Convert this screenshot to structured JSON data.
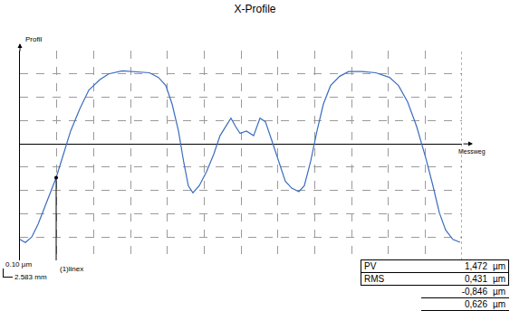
{
  "chart_data": {
    "type": "line",
    "title": "X-Profile",
    "x_label": "Messweg",
    "y_label": "Profil",
    "x": [
      0,
      0.37,
      0.8,
      1.23,
      1.72,
      2.21,
      2.46,
      2.95,
      3.44,
      4.06,
      4.67,
      5.41,
      6.02,
      6.95,
      7.87,
      8.79,
      9.4,
      9.9,
      10.33,
      10.76,
      11.12,
      11.43,
      11.74,
      12.17,
      12.66,
      13.15,
      13.58,
      14.01,
      14.32,
      14.63,
      14.94,
      15.37,
      15.86,
      16.29,
      16.66,
      17.09,
      17.58,
      18.01,
      18.44,
      18.93,
      19.3,
      19.73,
      20.16,
      20.59,
      21.08,
      21.7,
      22.31,
      23.23,
      24.15,
      25.08,
      25.69,
      26.31,
      26.92,
      27.54,
      28.03,
      28.46,
      28.89,
      29.38,
      29.87
    ],
    "values": [
      -0.82,
      -0.846,
      -0.8,
      -0.69,
      -0.53,
      -0.36,
      -0.29,
      -0.09,
      0.11,
      0.3,
      0.46,
      0.55,
      0.6,
      0.626,
      0.62,
      0.61,
      0.57,
      0.5,
      0.34,
      0.11,
      -0.16,
      -0.36,
      -0.42,
      -0.36,
      -0.24,
      -0.09,
      0.07,
      0.16,
      0.22,
      0.15,
      0.09,
      0.11,
      0.07,
      0.22,
      0.19,
      0.03,
      -0.16,
      -0.32,
      -0.38,
      -0.41,
      -0.36,
      -0.15,
      0.11,
      0.34,
      0.5,
      0.58,
      0.62,
      0.62,
      0.61,
      0.57,
      0.5,
      0.36,
      0.15,
      -0.12,
      -0.36,
      -0.59,
      -0.74,
      -0.82,
      -0.845
    ],
    "color": "#3b6cc0",
    "line_style": "solid",
    "xlim": [
      0,
      30
    ],
    "xticks": [
      0,
      2.5,
      5,
      7.5,
      10,
      12.5,
      15,
      17.5,
      20,
      22.5,
      25,
      27.5,
      30
    ],
    "ylim": [
      -1,
      0.8
    ],
    "yticks": [
      -1,
      -0.8,
      -0.6,
      -0.4,
      -0.2,
      0,
      0.2,
      0.4,
      0.6,
      0.8
    ],
    "grid": true,
    "tick_labels": false,
    "markers": [
      {
        "text": "(1)linex",
        "x": 2.46
      }
    ],
    "scale_labels": [
      "0.10 µm",
      "2.583 mm"
    ],
    "stats": [
      {
        "name": "PV",
        "text": "1,472",
        "unit": "µm"
      },
      {
        "name": "RMS",
        "text": "0,431",
        "unit": "µm"
      },
      {
        "text": "-0,846",
        "unit": "µm"
      },
      {
        "text": "0,626",
        "unit": "µm"
      }
    ]
  }
}
